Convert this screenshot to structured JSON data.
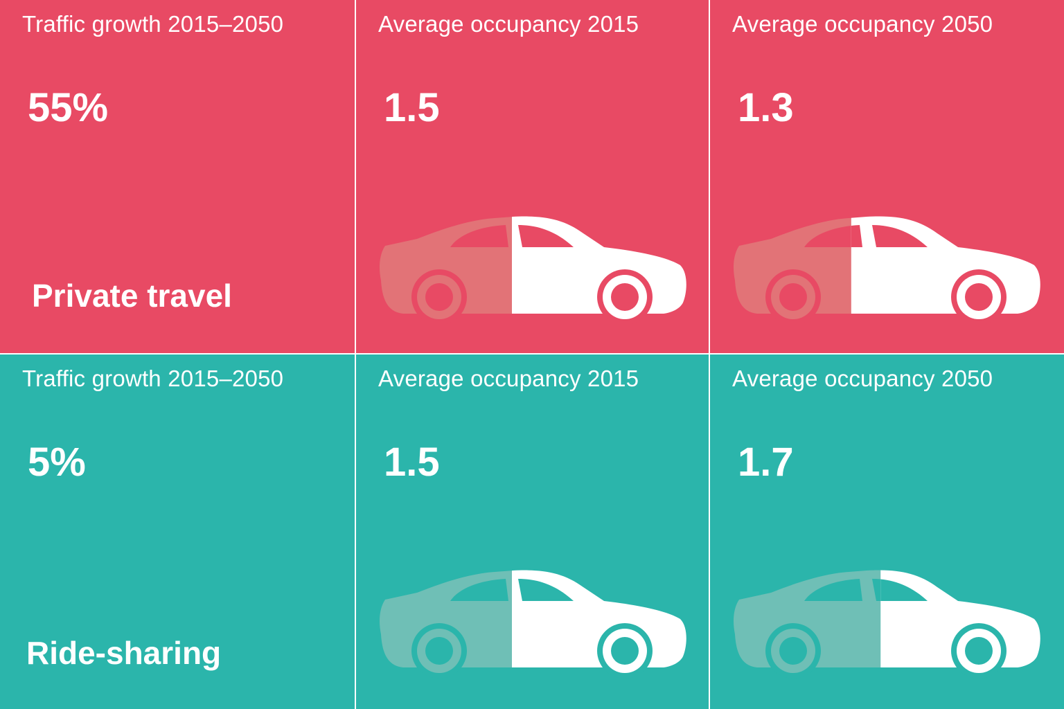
{
  "colors": {
    "private_light": "#e84a64",
    "private_dark": "#d8284f",
    "private_car_faded": "#e27377",
    "ride_light": "#2bb5ab",
    "ride_dark": "#0ba69c",
    "ride_car_faded": "#6fbfb6",
    "car_solid": "#ffffff"
  },
  "rows": [
    {
      "category": "Private travel",
      "growth_label": "Traffic growth 2015–2050",
      "growth_value": "55%",
      "occupancy_2015_label": "Average occupancy 2015",
      "occupancy_2015_value": "1.5",
      "occupancy_2050_label": "Average occupancy 2050",
      "occupancy_2050_value": "1.3"
    },
    {
      "category": "Ride-sharing",
      "growth_label": "Traffic growth 2015–2050",
      "growth_value": "5%",
      "occupancy_2015_label": "Average occupancy 2015",
      "occupancy_2015_value": "1.5",
      "occupancy_2050_label": "Average occupancy 2050",
      "occupancy_2050_value": "1.7"
    }
  ],
  "icons": {
    "occupancy_icon": "car-icon"
  }
}
